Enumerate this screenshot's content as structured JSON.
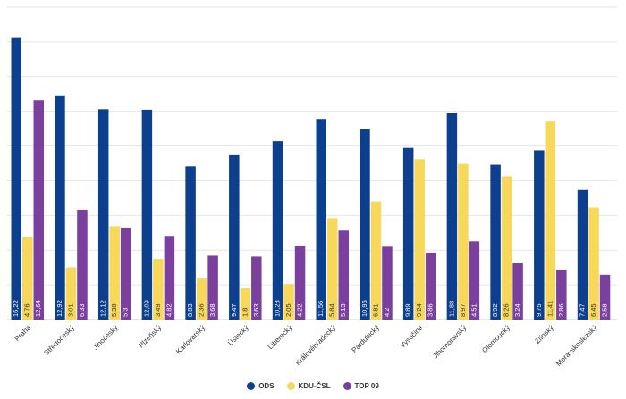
{
  "chart_data": {
    "type": "bar",
    "categories": [
      "Praha",
      "Středočeský",
      "Jihočeský",
      "Plzeňský",
      "Karlovarský",
      "Ústecký",
      "Liberecký",
      "Královéhradecký",
      "Pardubický",
      "Vysočina",
      "Jihomoravský",
      "Olomoucký",
      "Zlínský",
      "Moravskoslezský"
    ],
    "series": [
      {
        "name": "ODS",
        "color": "#0d3f8f",
        "values": [
          16.22,
          12.92,
          12.12,
          12.09,
          8.83,
          9.47,
          10.28,
          11.56,
          10.96,
          9.89,
          11.88,
          8.92,
          9.75,
          7.47
        ],
        "labels": [
          "16,22",
          "12,92",
          "12,12",
          "12,09",
          "8,83",
          "9,47",
          "10,28",
          "11,56",
          "10,96",
          "9,89",
          "11,88",
          "8,92",
          "9,75",
          "7,47"
        ]
      },
      {
        "name": "KDU-ČSL",
        "color": "#f7d85a",
        "values": [
          4.76,
          3.01,
          5.38,
          3.49,
          2.36,
          1.8,
          2.05,
          5.84,
          6.81,
          9.24,
          8.97,
          8.26,
          11.41,
          6.45
        ],
        "labels": [
          "4,76",
          "3,01",
          "5,38",
          "3,49",
          "2,36",
          "1,8",
          "2,05",
          "5,84",
          "6,81",
          "9,24",
          "8,97",
          "8,26",
          "11,41",
          "6,45"
        ]
      },
      {
        "name": "TOP 09",
        "color": "#7b3f9e",
        "values": [
          12.64,
          6.33,
          5.3,
          4.82,
          3.68,
          3.63,
          4.22,
          5.13,
          4.2,
          3.86,
          4.51,
          3.24,
          2.86,
          2.58
        ],
        "labels": [
          "12,64",
          "6,33",
          "5,3",
          "4,82",
          "3,68",
          "3,63",
          "4,22",
          "5,13",
          "4,2",
          "3,86",
          "4,51",
          "3,24",
          "2,86",
          "2,58"
        ]
      }
    ],
    "ylim": [
      0,
      18
    ],
    "grid": true,
    "legend": "bottom-center",
    "xlabel": "",
    "ylabel": "",
    "title": ""
  }
}
